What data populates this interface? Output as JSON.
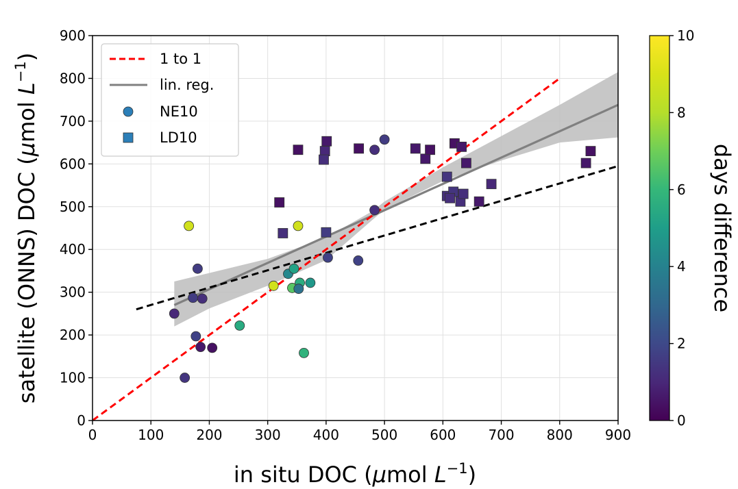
{
  "chart_data": {
    "type": "scatter",
    "xlabel_main": "in situ DOC (",
    "xlabel_mu": "μ",
    "xlabel_unit": "mol ",
    "xlabel_L": "L",
    "xlabel_exp": "−1",
    "xlabel_close": ")",
    "ylabel_main": "satellite (ONNS) DOC (",
    "ylabel_mu": "μ",
    "ylabel_unit": "mol ",
    "ylabel_L": "L",
    "ylabel_exp": "−1",
    "ylabel_close": ")",
    "xlim": [
      0,
      900
    ],
    "ylim": [
      0,
      900
    ],
    "xticks": [
      0,
      100,
      200,
      300,
      400,
      500,
      600,
      700,
      800,
      900
    ],
    "yticks": [
      0,
      100,
      200,
      300,
      400,
      500,
      600,
      700,
      800,
      900
    ],
    "grid": true,
    "legend_position": "top-left",
    "legend": {
      "one_to_one": "1 to 1",
      "lin_reg": "lin. reg.",
      "ne10": "NE10",
      "ld10": "LD10"
    },
    "colorbar": {
      "label": "days difference",
      "min": 0,
      "max": 10,
      "ticks": [
        0,
        2,
        4,
        6,
        8,
        10
      ],
      "colormap": "viridis"
    },
    "lines": {
      "one_to_one": {
        "x": [
          0,
          800
        ],
        "y": [
          0,
          800
        ],
        "color": "#ff0000",
        "style": "dashed"
      },
      "black_dashed": {
        "x": [
          75,
          900
        ],
        "y": [
          260,
          595
        ],
        "color": "#000000",
        "style": "dashed"
      },
      "lin_reg": {
        "x": [
          140,
          900
        ],
        "y": [
          270,
          738
        ],
        "color": "#808080"
      },
      "ci_band": {
        "x": [
          140,
          200,
          300,
          400,
          480,
          500,
          600,
          700,
          800,
          900
        ],
        "upper": [
          325,
          345,
          378,
          428,
          490,
          512,
          592,
          665,
          738,
          815
        ],
        "lower": [
          220,
          262,
          315,
          375,
          470,
          493,
          560,
          608,
          650,
          662
        ]
      }
    },
    "series": [
      {
        "name": "NE10",
        "marker": "circle",
        "points": [
          {
            "x": 165,
            "y": 455,
            "d": 8.8
          },
          {
            "x": 352,
            "y": 455,
            "d": 8.8
          },
          {
            "x": 180,
            "y": 355,
            "d": 1.6
          },
          {
            "x": 172,
            "y": 287,
            "d": 1.6
          },
          {
            "x": 188,
            "y": 285,
            "d": 1.2
          },
          {
            "x": 140,
            "y": 250,
            "d": 1.0
          },
          {
            "x": 177,
            "y": 197,
            "d": 1.8
          },
          {
            "x": 185,
            "y": 172,
            "d": 0.6
          },
          {
            "x": 205,
            "y": 170,
            "d": 0.4
          },
          {
            "x": 158,
            "y": 100,
            "d": 1.4
          },
          {
            "x": 252,
            "y": 222,
            "d": 5.5
          },
          {
            "x": 310,
            "y": 315,
            "d": 8.8
          },
          {
            "x": 335,
            "y": 343,
            "d": 4.2
          },
          {
            "x": 345,
            "y": 355,
            "d": 5.2
          },
          {
            "x": 342,
            "y": 310,
            "d": 6.6
          },
          {
            "x": 355,
            "y": 322,
            "d": 5.6
          },
          {
            "x": 353,
            "y": 308,
            "d": 3.4
          },
          {
            "x": 373,
            "y": 322,
            "d": 4.8
          },
          {
            "x": 362,
            "y": 158,
            "d": 5.8
          },
          {
            "x": 403,
            "y": 381,
            "d": 1.8
          },
          {
            "x": 455,
            "y": 374,
            "d": 1.8
          },
          {
            "x": 483,
            "y": 633,
            "d": 1.2
          },
          {
            "x": 500,
            "y": 657,
            "d": 1.6
          },
          {
            "x": 483,
            "y": 492,
            "d": 1.2
          }
        ]
      },
      {
        "name": "LD10",
        "marker": "square",
        "points": [
          {
            "x": 320,
            "y": 510,
            "d": 0.4
          },
          {
            "x": 326,
            "y": 438,
            "d": 1.2
          },
          {
            "x": 352,
            "y": 633,
            "d": 0.4
          },
          {
            "x": 401,
            "y": 653,
            "d": 0.6
          },
          {
            "x": 398,
            "y": 630,
            "d": 1.0
          },
          {
            "x": 396,
            "y": 610,
            "d": 1.2
          },
          {
            "x": 400,
            "y": 440,
            "d": 1.6
          },
          {
            "x": 456,
            "y": 636,
            "d": 0.4
          },
          {
            "x": 553,
            "y": 636,
            "d": 0.6
          },
          {
            "x": 570,
            "y": 612,
            "d": 0.6
          },
          {
            "x": 578,
            "y": 633,
            "d": 0.4
          },
          {
            "x": 607,
            "y": 570,
            "d": 1.4
          },
          {
            "x": 607,
            "y": 525,
            "d": 1.2
          },
          {
            "x": 618,
            "y": 535,
            "d": 1.4
          },
          {
            "x": 620,
            "y": 648,
            "d": 0.4
          },
          {
            "x": 612,
            "y": 520,
            "d": 1.2
          },
          {
            "x": 630,
            "y": 512,
            "d": 1.2
          },
          {
            "x": 632,
            "y": 640,
            "d": 0.6
          },
          {
            "x": 635,
            "y": 530,
            "d": 1.2
          },
          {
            "x": 640,
            "y": 602,
            "d": 0.6
          },
          {
            "x": 662,
            "y": 512,
            "d": 0.6
          },
          {
            "x": 683,
            "y": 553,
            "d": 1.0
          },
          {
            "x": 845,
            "y": 602,
            "d": 0.6
          },
          {
            "x": 853,
            "y": 630,
            "d": 0.4
          }
        ]
      }
    ]
  }
}
